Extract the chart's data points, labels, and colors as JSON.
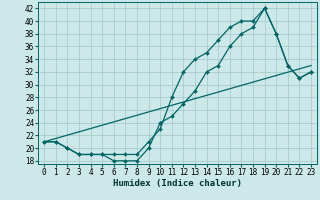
{
  "xlabel": "Humidex (Indice chaleur)",
  "bg_color": "#cce8e8",
  "grid_color": "#aacccc",
  "line_color": "#006666",
  "xlim": [
    -0.5,
    23.5
  ],
  "ylim": [
    17.5,
    43
  ],
  "xticks": [
    0,
    1,
    2,
    3,
    4,
    5,
    6,
    7,
    8,
    9,
    10,
    11,
    12,
    13,
    14,
    15,
    16,
    17,
    18,
    19,
    20,
    21,
    22,
    23
  ],
  "yticks": [
    18,
    20,
    22,
    24,
    26,
    28,
    30,
    32,
    34,
    36,
    38,
    40,
    42
  ],
  "line1_x": [
    0,
    1,
    2,
    3,
    4,
    5,
    6,
    7,
    8,
    9,
    10,
    11,
    12,
    13,
    14,
    15,
    16,
    17,
    18,
    19,
    20,
    21,
    22,
    23
  ],
  "line1_y": [
    21,
    21,
    20,
    19,
    19,
    19,
    19,
    19,
    19,
    21,
    23,
    28,
    32,
    34,
    35,
    37,
    39,
    40,
    40,
    42,
    38,
    33,
    31,
    32
  ],
  "line2_x": [
    0,
    1,
    2,
    3,
    4,
    5,
    6,
    7,
    8,
    9,
    10,
    11,
    12,
    13,
    14,
    15,
    16,
    17,
    18,
    19,
    20,
    21,
    22,
    23
  ],
  "line2_y": [
    21,
    21,
    20,
    19,
    19,
    19,
    18,
    18,
    18,
    20,
    24,
    25,
    27,
    29,
    32,
    33,
    36,
    38,
    39,
    42,
    38,
    33,
    31,
    32
  ],
  "line3_x": [
    0,
    23
  ],
  "line3_y": [
    21,
    33
  ],
  "tick_fontsize": 5.5,
  "xlabel_fontsize": 6.5
}
